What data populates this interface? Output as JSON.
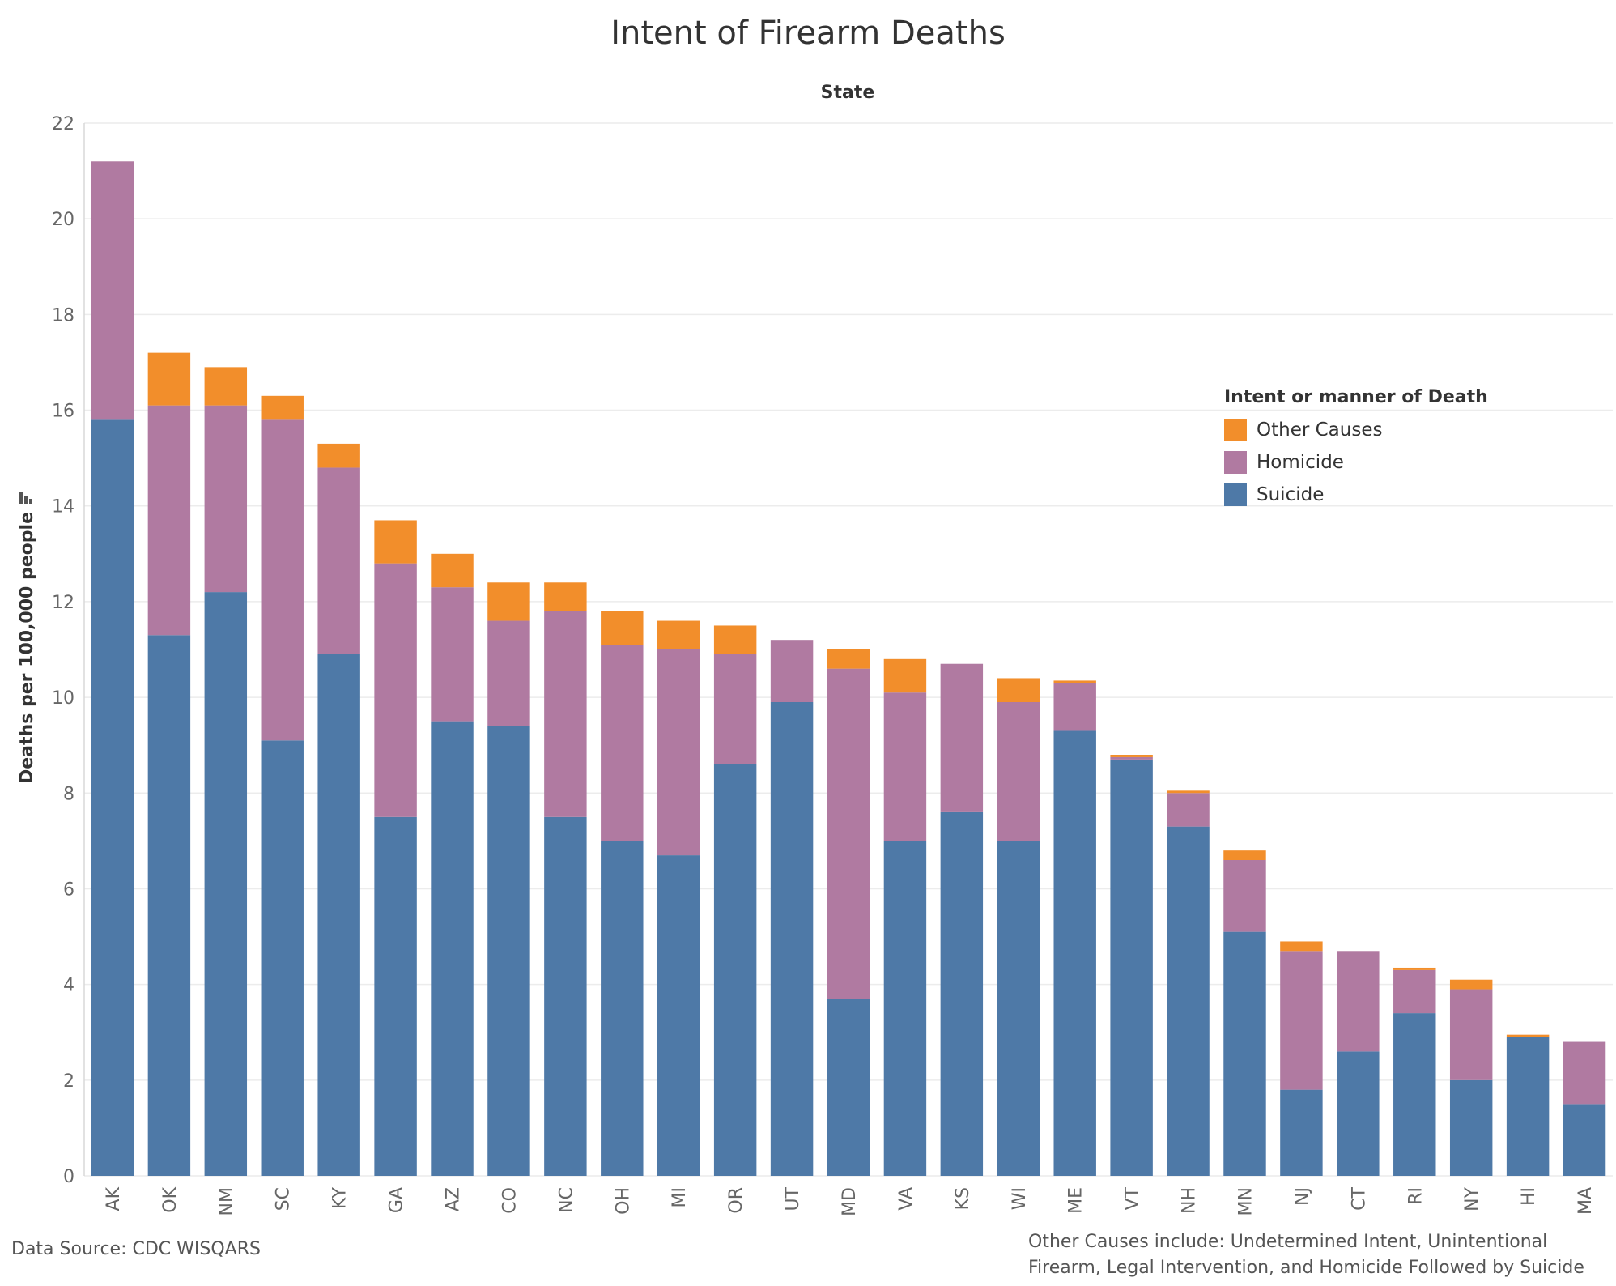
{
  "title": "Intent of Firearm Deaths",
  "source_note": "Data Source: CDC WISQARS",
  "footnote_line1": "Other Causes include: Undetermined Intent, Unintentional",
  "footnote_line2": "Firearm, Legal Intervention, and Homicide Followed by Suicide",
  "chart_data": {
    "type": "bar",
    "stacked": true,
    "column_header": "State",
    "ylabel": "Deaths per 100,000 people",
    "ylim": [
      0,
      22
    ],
    "yticks": [
      0,
      2,
      4,
      6,
      8,
      10,
      12,
      14,
      16,
      18,
      20,
      22
    ],
    "grid": true,
    "legend_title": "Intent or manner of Death",
    "legend_position": "right",
    "categories": [
      "AK",
      "OK",
      "NM",
      "SC",
      "KY",
      "GA",
      "AZ",
      "CO",
      "NC",
      "OH",
      "MI",
      "OR",
      "UT",
      "MD",
      "VA",
      "KS",
      "WI",
      "ME",
      "VT",
      "NH",
      "MN",
      "NJ",
      "CT",
      "RI",
      "NY",
      "HI",
      "MA"
    ],
    "series": [
      {
        "name": "Suicide",
        "color": "#4e79a7",
        "values": [
          15.8,
          11.3,
          12.2,
          9.1,
          10.9,
          7.5,
          9.5,
          9.4,
          7.5,
          7.0,
          6.7,
          8.6,
          9.9,
          3.7,
          7.0,
          7.6,
          7.0,
          9.3,
          8.7,
          7.3,
          5.1,
          1.8,
          2.6,
          3.4,
          2.0,
          2.9,
          1.5
        ]
      },
      {
        "name": "Homicide",
        "color": "#b07aa1",
        "values": [
          5.4,
          4.8,
          3.9,
          6.7,
          3.9,
          5.3,
          2.8,
          2.2,
          4.3,
          4.1,
          4.3,
          2.3,
          1.3,
          6.9,
          3.1,
          3.1,
          2.9,
          1.0,
          0.05,
          0.7,
          1.5,
          2.9,
          2.1,
          0.9,
          1.9,
          0.0,
          1.3
        ]
      },
      {
        "name": "Other Causes",
        "color": "#f28e2b",
        "values": [
          0.0,
          1.1,
          0.8,
          0.5,
          0.5,
          0.9,
          0.7,
          0.8,
          0.6,
          0.7,
          0.6,
          0.6,
          0.0,
          0.4,
          0.7,
          0.0,
          0.5,
          0.05,
          0.05,
          0.05,
          0.2,
          0.2,
          0.0,
          0.05,
          0.2,
          0.05,
          0.0
        ]
      }
    ]
  }
}
